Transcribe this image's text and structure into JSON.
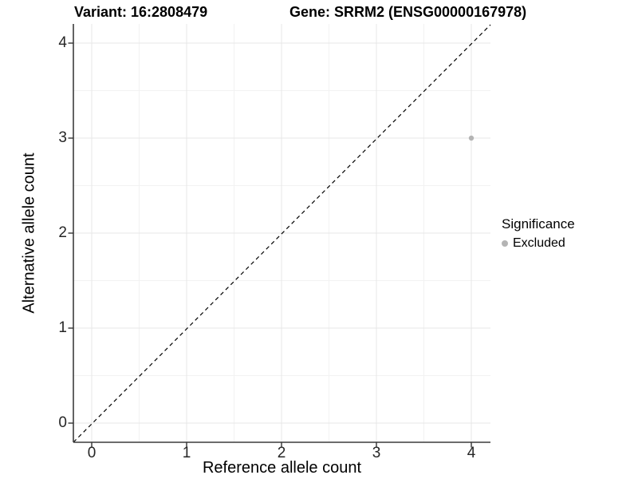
{
  "header": {
    "variant_title": "Variant: 16:2808479",
    "gene_title": "Gene: SRRM2 (ENSG00000167978)"
  },
  "chart_data": {
    "type": "scatter",
    "xlabel": "Reference allele count",
    "ylabel": "Alternative allele count",
    "x_ticks": [
      0,
      1,
      2,
      3,
      4
    ],
    "y_ticks": [
      0,
      1,
      2,
      3,
      4
    ],
    "xlim": [
      -0.2,
      4.2
    ],
    "ylim": [
      -0.2,
      4.2
    ],
    "grid": "major gridlines at integers, minor gridlines at half-integers",
    "identity_line": {
      "style": "dashed",
      "slope": 1,
      "intercept": 0,
      "color": "#000000"
    },
    "series": [
      {
        "name": "Excluded",
        "color": "#b4b4b4",
        "points": [
          {
            "x": 4,
            "y": 3
          }
        ]
      }
    ],
    "legend": {
      "title": "Significance",
      "position": "right",
      "items": [
        {
          "label": "Excluded",
          "color": "#b4b4b4",
          "marker": "circle"
        }
      ]
    }
  },
  "colors": {
    "background": "#ffffff",
    "grid_major": "#e7e7e7",
    "grid_minor": "#f2f2f2",
    "axis_line": "#3c3c3c",
    "tick_mark": "#333333",
    "tick_text": "#262626",
    "point": "#b4b4b4"
  }
}
